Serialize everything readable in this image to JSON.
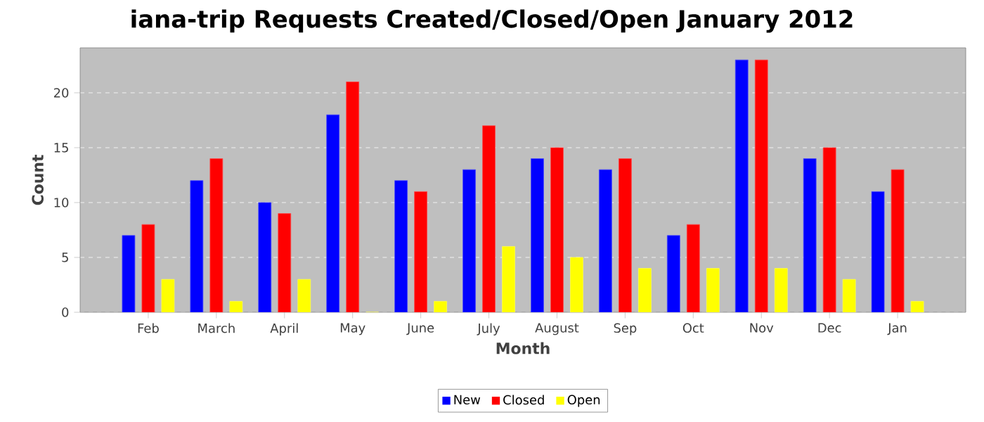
{
  "chart_data": {
    "type": "bar",
    "title": "iana-trip Requests Created/Closed/Open January 2012",
    "xlabel": "Month",
    "ylabel": "Count",
    "categories": [
      "Feb",
      "March",
      "April",
      "May",
      "June",
      "July",
      "August",
      "Sep",
      "Oct",
      "Nov",
      "Dec",
      "Jan"
    ],
    "series": [
      {
        "name": "New",
        "color": "#0000ff",
        "values": [
          7,
          12,
          10,
          18,
          12,
          13,
          14,
          13,
          7,
          23,
          14,
          11
        ]
      },
      {
        "name": "Closed",
        "color": "#ff0000",
        "values": [
          8,
          14,
          9,
          21,
          11,
          17,
          15,
          14,
          8,
          23,
          15,
          13
        ]
      },
      {
        "name": "Open",
        "color": "#ffff00",
        "values": [
          3,
          1,
          3,
          0,
          1,
          6,
          5,
          4,
          4,
          4,
          3,
          1
        ]
      }
    ],
    "ylim": [
      0,
      24.1
    ],
    "yticks": [
      0,
      5,
      10,
      15,
      20
    ],
    "grid": "y",
    "legend": "bottom"
  }
}
